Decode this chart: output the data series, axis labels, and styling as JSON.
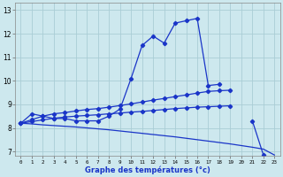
{
  "xlabel": "Graphe des températures (°c)",
  "bg_color": "#cde8ee",
  "grid_color": "#aacdd6",
  "line_color": "#1a35c8",
  "ylim": [
    6.8,
    13.3
  ],
  "xlim": [
    -0.5,
    23.5
  ],
  "yticks": [
    7,
    8,
    9,
    10,
    11,
    12,
    13
  ],
  "xticks": [
    0,
    1,
    2,
    3,
    4,
    5,
    6,
    7,
    8,
    9,
    10,
    11,
    12,
    13,
    14,
    15,
    16,
    17,
    18,
    19,
    20,
    21,
    22,
    23
  ],
  "main_y": [
    8.2,
    8.6,
    8.5,
    8.4,
    8.4,
    8.3,
    8.3,
    8.3,
    8.5,
    8.8,
    10.1,
    11.5,
    11.9,
    11.6,
    12.45,
    12.55,
    12.65,
    9.8,
    9.85,
    null,
    null,
    8.3,
    6.85,
    6.65
  ],
  "line_upper1_y": [
    8.2,
    8.35,
    8.5,
    8.6,
    8.65,
    8.72,
    8.78,
    8.82,
    8.88,
    8.95,
    9.02,
    9.1,
    9.18,
    9.25,
    9.33,
    9.4,
    9.48,
    9.55,
    9.58,
    9.6,
    null,
    null,
    null,
    null
  ],
  "line_upper2_y": [
    8.2,
    8.27,
    8.34,
    8.41,
    8.46,
    8.5,
    8.53,
    8.56,
    8.6,
    8.63,
    8.67,
    8.7,
    8.74,
    8.78,
    8.82,
    8.85,
    8.88,
    8.9,
    8.92,
    8.94,
    null,
    null,
    null,
    null
  ],
  "line_lower_y": [
    8.2,
    8.17,
    8.13,
    8.1,
    8.07,
    8.04,
    8.0,
    7.96,
    7.92,
    7.87,
    7.82,
    7.77,
    7.72,
    7.67,
    7.62,
    7.56,
    7.5,
    7.44,
    7.38,
    7.32,
    7.25,
    7.18,
    7.1,
    6.85
  ]
}
